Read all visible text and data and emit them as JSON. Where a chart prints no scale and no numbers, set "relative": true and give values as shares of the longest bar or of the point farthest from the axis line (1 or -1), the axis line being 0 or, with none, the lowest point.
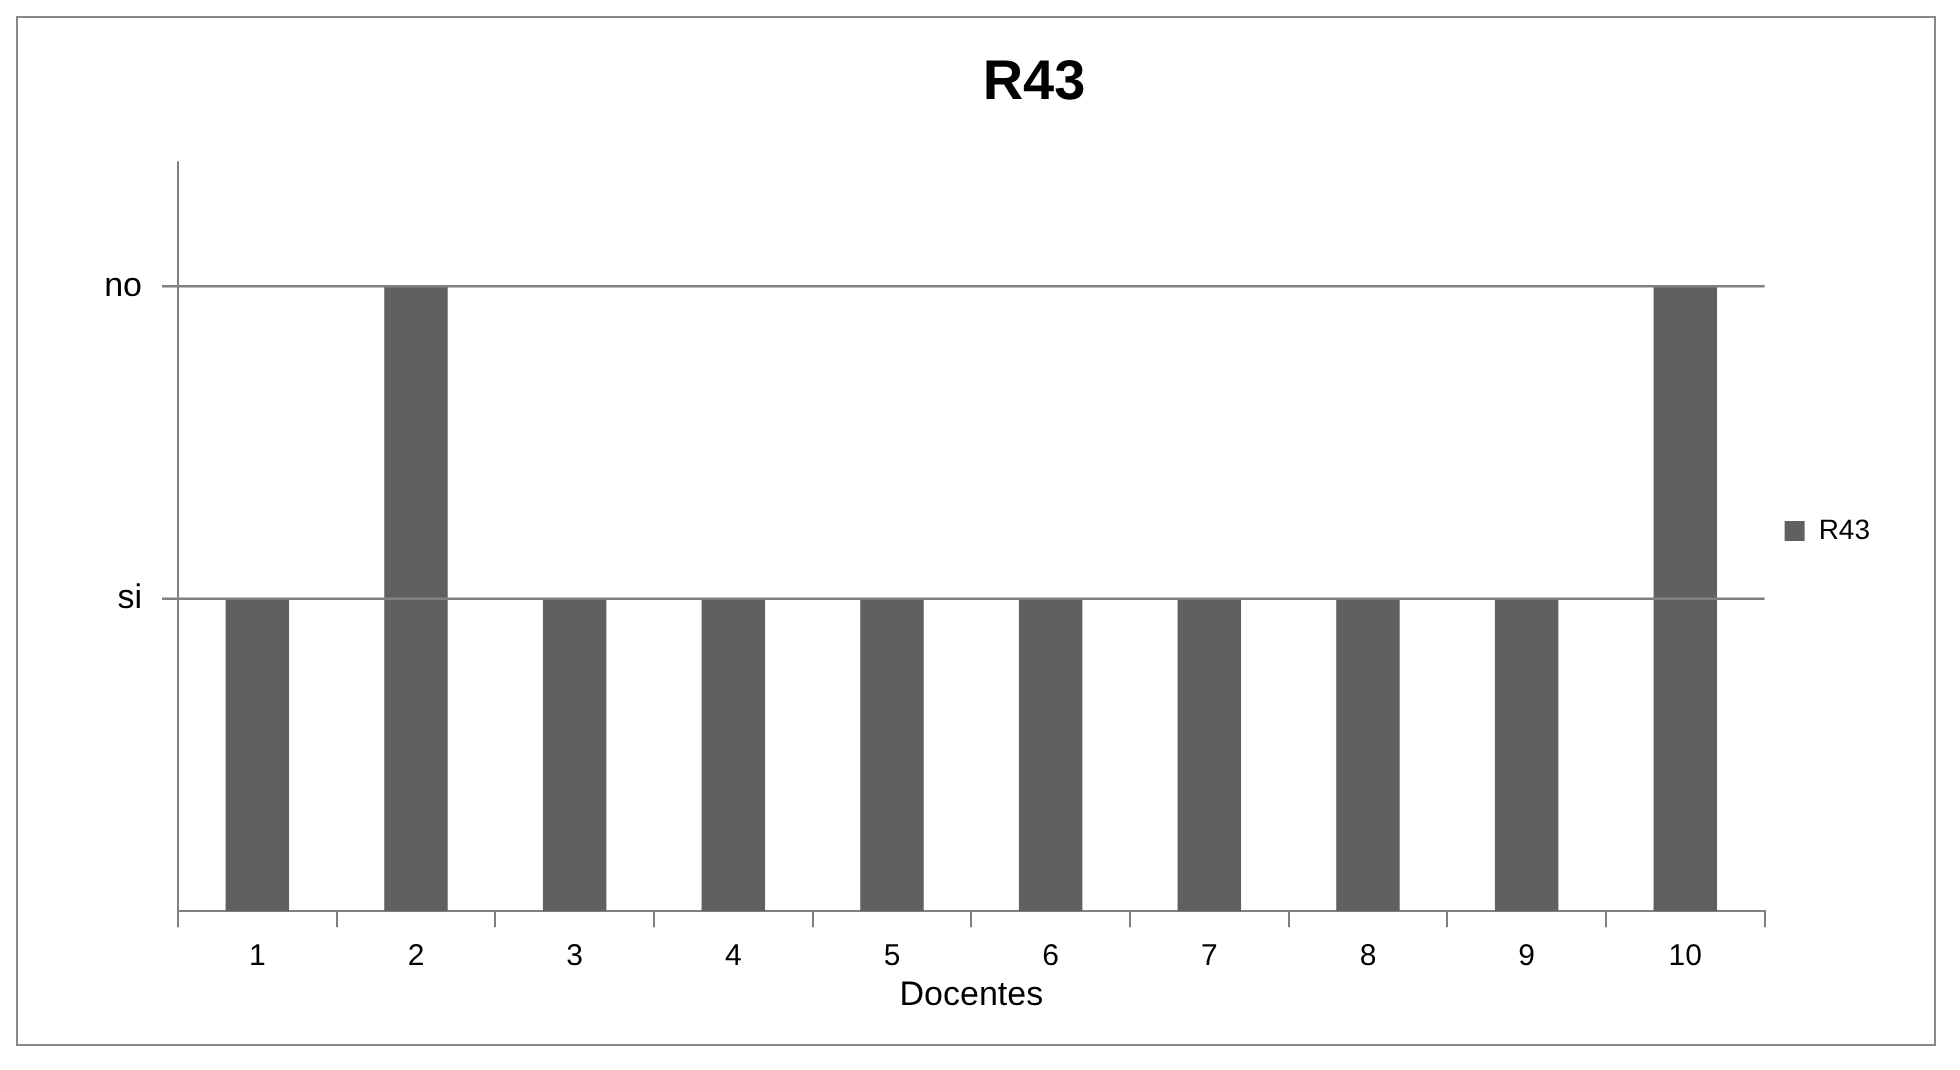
{
  "chart_data": {
    "type": "bar",
    "title": "R43",
    "xlabel": "Docentes",
    "categories": [
      "1",
      "2",
      "3",
      "4",
      "5",
      "6",
      "7",
      "8",
      "9",
      "10"
    ],
    "series": [
      {
        "name": "R43",
        "color": "#606060",
        "values": [
          0.5,
          1,
          0.5,
          0.5,
          0.5,
          0.5,
          0.5,
          0.5,
          0.5,
          1
        ]
      }
    ],
    "relative": true,
    "ref_lines": [
      {
        "axis": "y",
        "value": 0.5,
        "label": "si",
        "color": "#808080"
      },
      {
        "axis": "y",
        "value": 1,
        "label": "no",
        "color": "#808080"
      }
    ],
    "legend": "right"
  }
}
